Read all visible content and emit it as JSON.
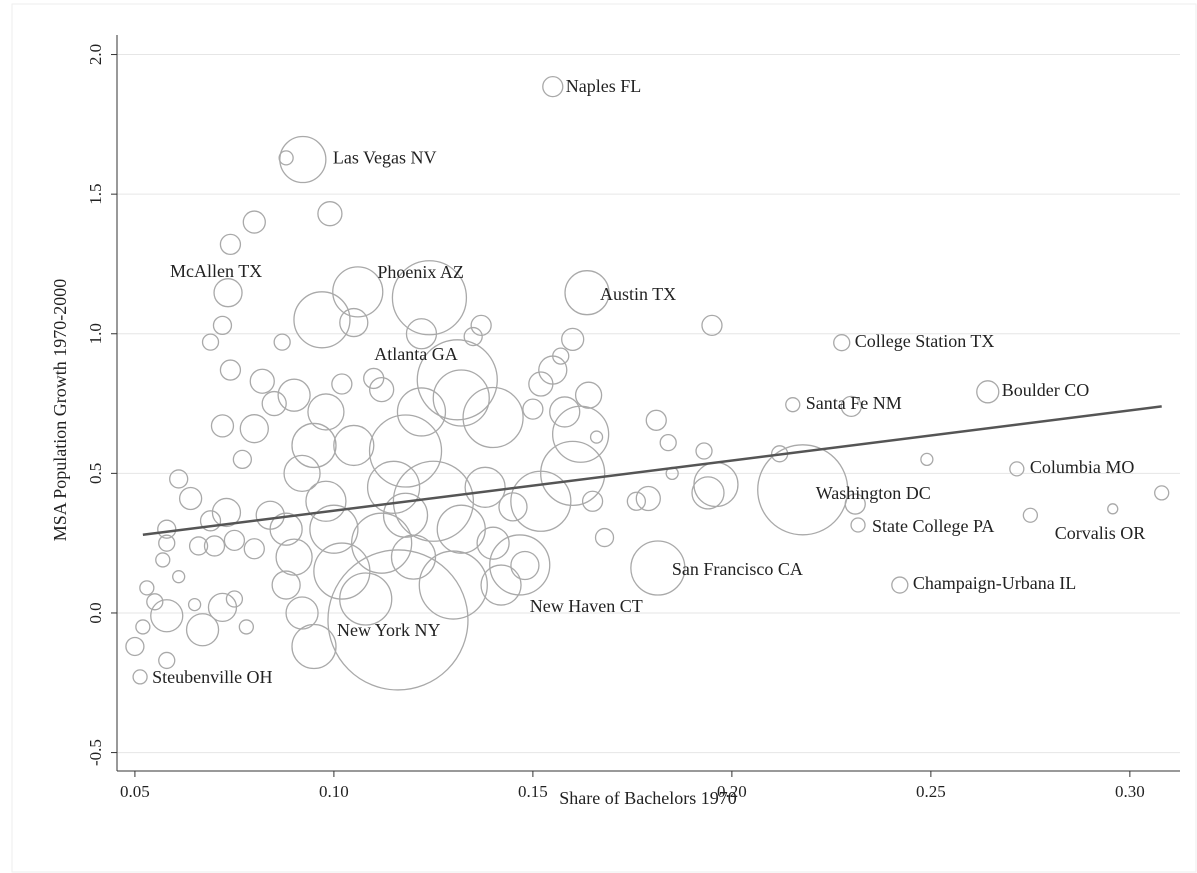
{
  "chart_data": {
    "type": "scatter",
    "x_label": "Share of Bachelors 1970",
    "y_label": "MSA Population Growth 1970-2000",
    "xlim": [
      0.0455,
      0.3126
    ],
    "ylim": [
      -0.566,
      2.07
    ],
    "xticks": [
      0.05,
      {
        "value": 0.1,
        "label": "0.10"
      },
      0.15,
      {
        "value": 0.2,
        "label": "0.20"
      },
      0.25,
      {
        "value": 0.3,
        "label": "0.30"
      }
    ],
    "yticks": [
      {
        "value": 2,
        "label": "2.0"
      },
      1.5,
      {
        "value": 1,
        "label": "1.0"
      },
      0.5,
      {
        "value": 0,
        "label": "0.0"
      },
      -0.5
    ],
    "grid": true,
    "marker_color": "#a9a9a9",
    "fit_line": {
      "x": [
        0.052,
        0.308
      ],
      "y": [
        0.28,
        0.74
      ],
      "color": "#555555"
    },
    "labels": [
      "Naples FL",
      "Las Vegas NV",
      "McAllen TX",
      "Phoenix AZ",
      "Austin TX",
      "Atlanta GA",
      "College Station TX",
      "Santa Fe NM",
      "Boulder CO",
      "Columbia MO",
      "Washington DC",
      "State College PA",
      "Corvalis OR",
      "San Francisco CA",
      "Champaign-Urbana IL",
      "New Haven CT",
      "New York NY",
      "Steubenville OH"
    ],
    "x": [
      0.155,
      0.0922,
      0.0734,
      0.124,
      0.1636,
      0.131,
      0.2276,
      0.2153,
      0.2643,
      0.2716,
      0.2178,
      0.2317,
      0.2957,
      0.1814,
      0.2422,
      0.1467,
      0.1161,
      0.0513,
      0.088,
      0.099,
      0.08,
      0.074,
      0.072,
      0.069,
      0.074,
      0.087,
      0.097,
      0.106,
      0.105,
      0.122,
      0.135,
      0.137,
      0.16,
      0.195,
      0.157,
      0.155,
      0.164,
      0.158,
      0.162,
      0.16,
      0.15,
      0.152,
      0.14,
      0.132,
      0.122,
      0.118,
      0.11,
      0.112,
      0.102,
      0.098,
      0.09,
      0.085,
      0.082,
      0.08,
      0.072,
      0.077,
      0.061,
      0.064,
      0.073,
      0.069,
      0.058,
      0.058,
      0.066,
      0.07,
      0.075,
      0.057,
      0.061,
      0.053,
      0.055,
      0.058,
      0.065,
      0.067,
      0.072,
      0.052,
      0.05,
      0.058,
      0.075,
      0.078,
      0.08,
      0.084,
      0.088,
      0.09,
      0.088,
      0.092,
      0.095,
      0.098,
      0.1,
      0.102,
      0.095,
      0.092,
      0.108,
      0.112,
      0.118,
      0.125,
      0.13,
      0.132,
      0.138,
      0.14,
      0.142,
      0.145,
      0.152,
      0.148,
      0.165,
      0.168,
      0.176,
      0.179,
      0.181,
      0.184,
      0.185,
      0.193,
      0.194,
      0.196,
      0.212,
      0.23,
      0.231,
      0.249,
      0.275,
      0.308,
      0.166,
      0.12,
      0.105,
      0.115
    ],
    "y": [
      1.885,
      1.624,
      1.147,
      1.129,
      1.147,
      0.835,
      0.968,
      0.746,
      0.792,
      0.516,
      0.441,
      0.315,
      0.373,
      0.161,
      0.1,
      0.172,
      -0.025,
      -0.229,
      1.63,
      1.43,
      1.4,
      1.32,
      1.03,
      0.97,
      0.87,
      0.97,
      1.05,
      1.15,
      1.04,
      1.0,
      0.99,
      1.03,
      0.98,
      1.03,
      0.92,
      0.87,
      0.78,
      0.72,
      0.64,
      0.5,
      0.73,
      0.82,
      0.7,
      0.77,
      0.72,
      0.58,
      0.84,
      0.8,
      0.82,
      0.72,
      0.78,
      0.75,
      0.83,
      0.66,
      0.67,
      0.55,
      0.48,
      0.41,
      0.36,
      0.33,
      0.3,
      0.25,
      0.24,
      0.24,
      0.26,
      0.19,
      0.13,
      0.09,
      0.04,
      -0.01,
      0.03,
      -0.06,
      0.02,
      -0.05,
      -0.12,
      -0.17,
      0.05,
      -0.05,
      0.23,
      0.35,
      0.3,
      0.2,
      0.1,
      0.5,
      0.6,
      0.4,
      0.3,
      0.15,
      -0.12,
      0.0,
      0.05,
      0.25,
      0.35,
      0.4,
      0.1,
      0.3,
      0.45,
      0.25,
      0.1,
      0.38,
      0.4,
      0.17,
      0.4,
      0.27,
      0.4,
      0.41,
      0.69,
      0.61,
      0.5,
      0.58,
      0.43,
      0.46,
      0.57,
      0.74,
      0.39,
      0.55,
      0.35,
      0.43,
      0.63,
      0.2,
      0.6,
      0.45
    ],
    "sizes": [
      10,
      23,
      14,
      37,
      22,
      40,
      8,
      7,
      11,
      7,
      45,
      7,
      5,
      27,
      8,
      30,
      70,
      7,
      7,
      12,
      11,
      10,
      9,
      8,
      10,
      8,
      28,
      25,
      14,
      15,
      9,
      10,
      11,
      10,
      8,
      14,
      13,
      15,
      28,
      32,
      10,
      12,
      30,
      28,
      24,
      36,
      10,
      12,
      10,
      18,
      16,
      12,
      12,
      14,
      11,
      9,
      9,
      11,
      14,
      10,
      9,
      8,
      9,
      10,
      10,
      7,
      6,
      7,
      8,
      16,
      6,
      16,
      14,
      7,
      9,
      8,
      8,
      7,
      10,
      14,
      16,
      18,
      14,
      18,
      22,
      20,
      24,
      28,
      22,
      16,
      26,
      30,
      22,
      40,
      34,
      24,
      20,
      16,
      20,
      14,
      30,
      14,
      10,
      9,
      9,
      12,
      10,
      8,
      6,
      8,
      16,
      22,
      8,
      10,
      10,
      6,
      7,
      7,
      6,
      22,
      20,
      26
    ]
  }
}
